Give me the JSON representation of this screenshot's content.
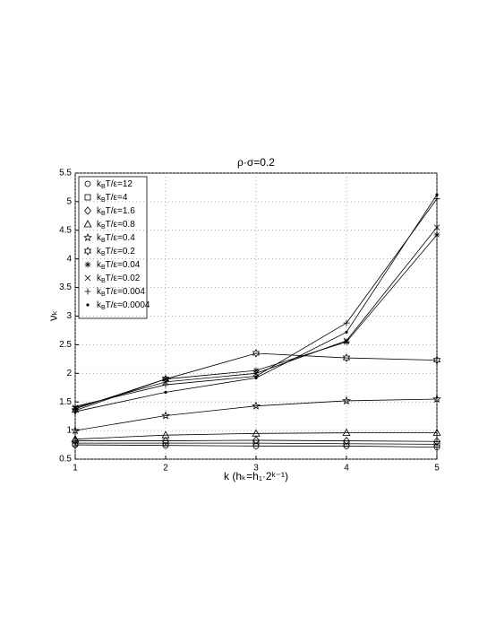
{
  "chart_data": {
    "type": "line",
    "title": "ρ·σ=0.2",
    "x_label": "k (hₖ=h₁·2ᵏ⁻¹)",
    "y_label": "νₖ",
    "x": [
      1,
      2,
      3,
      4,
      5
    ],
    "xlim": [
      1,
      5
    ],
    "xticks": [
      1,
      2,
      3,
      4,
      5
    ],
    "ylim": [
      0.5,
      5.5
    ],
    "yticks": [
      0.5,
      1,
      1.5,
      2,
      2.5,
      3,
      3.5,
      4,
      4.5,
      5,
      5.5
    ],
    "grid": true,
    "legend": "upper-left",
    "series": [
      {
        "name": "kBT/ε=12",
        "marker": "circle",
        "color": "#000000",
        "values": [
          0.75,
          0.74,
          0.73,
          0.73,
          0.71
        ]
      },
      {
        "name": "kBT/ε=4",
        "marker": "square",
        "color": "#000000",
        "values": [
          0.78,
          0.78,
          0.78,
          0.77,
          0.76
        ]
      },
      {
        "name": "kBT/ε=1.6",
        "marker": "diamond",
        "color": "#000000",
        "values": [
          0.82,
          0.82,
          0.83,
          0.82,
          0.81
        ]
      },
      {
        "name": "kBT/ε=0.8",
        "marker": "triangle",
        "color": "#000000",
        "values": [
          0.85,
          0.92,
          0.95,
          0.96,
          0.96
        ]
      },
      {
        "name": "kBT/ε=0.4",
        "marker": "star",
        "color": "#000000",
        "values": [
          1.0,
          1.26,
          1.43,
          1.52,
          1.55
        ]
      },
      {
        "name": "kBT/ε=0.2",
        "marker": "hexagram",
        "color": "#000000",
        "values": [
          1.35,
          1.9,
          2.35,
          2.27,
          2.23
        ]
      },
      {
        "name": "kBT/ε=0.04",
        "marker": "asterisk",
        "color": "#000000",
        "values": [
          1.38,
          1.9,
          2.05,
          2.55,
          4.42
        ]
      },
      {
        "name": "kBT/ε=0.02",
        "marker": "x",
        "color": "#000000",
        "values": [
          1.4,
          1.85,
          2.0,
          2.57,
          4.55
        ]
      },
      {
        "name": "kBT/ε=0.004",
        "marker": "plus",
        "color": "#000000",
        "values": [
          1.42,
          1.8,
          1.95,
          2.88,
          5.05
        ]
      },
      {
        "name": "kBT/ε=0.0004",
        "marker": "dot",
        "color": "#000000",
        "values": [
          1.33,
          1.67,
          1.92,
          2.72,
          5.12
        ]
      }
    ]
  }
}
